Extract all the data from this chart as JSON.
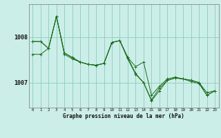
{
  "bg_color": "#cceee8",
  "grid_color": "#88ccbb",
  "line_color": "#1a6b1a",
  "hours": [
    0,
    1,
    2,
    3,
    4,
    5,
    6,
    7,
    8,
    9,
    10,
    11,
    12,
    13,
    14,
    15,
    16,
    17,
    18,
    19,
    20,
    21,
    22,
    23
  ],
  "s1": [
    1007.9,
    1007.9,
    1007.75,
    1008.45,
    1007.65,
    1007.55,
    1007.45,
    1007.4,
    1007.38,
    1007.42,
    1007.88,
    1007.92,
    1007.55,
    1007.35,
    1007.45,
    1006.72,
    1006.92,
    1007.08,
    1007.12,
    1007.08,
    1007.05,
    1007.0,
    1006.78,
    1006.82
  ],
  "s2": [
    1007.9,
    1007.9,
    1007.75,
    1008.45,
    1007.65,
    1007.55,
    1007.45,
    1007.4,
    1007.38,
    1007.42,
    1007.88,
    1007.92,
    1007.55,
    1007.2,
    1007.0,
    1006.62,
    1006.88,
    1007.05,
    1007.1,
    1007.08,
    1007.05,
    1007.0,
    1006.72,
    1006.82
  ],
  "s3": [
    1007.62,
    1007.62,
    1007.75,
    1008.45,
    1007.62,
    1007.52,
    1007.45,
    1007.4,
    1007.38,
    1007.42,
    1007.88,
    1007.92,
    1007.52,
    1007.18,
    1007.0,
    1006.6,
    1006.82,
    1007.05,
    1007.1,
    1007.08,
    1007.02,
    1006.98,
    1006.72,
    1006.82
  ],
  "ylim": [
    1006.45,
    1008.72
  ],
  "yticks": [
    1007.0,
    1008.0
  ],
  "ytick_labels": [
    "1007",
    "1008"
  ],
  "xlim": [
    -0.5,
    23.5
  ],
  "xticks": [
    0,
    1,
    2,
    3,
    4,
    5,
    6,
    7,
    8,
    9,
    10,
    11,
    12,
    13,
    14,
    15,
    16,
    17,
    18,
    19,
    20,
    21,
    22,
    23
  ],
  "xlabel": "Graphe pression niveau de la mer (hPa)"
}
